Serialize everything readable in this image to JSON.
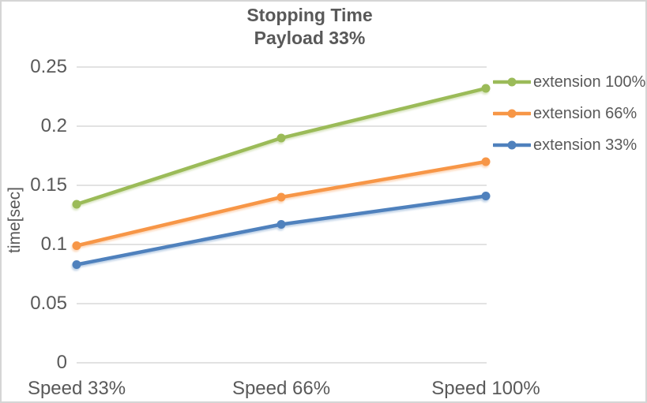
{
  "frame": {
    "border_color": "#d5d5d5",
    "background": "#ffffff"
  },
  "chart_data": {
    "type": "line",
    "title": "Stopping Time",
    "subtitle": "Payload 33%",
    "ylabel": "time[sec]",
    "xlabel": "",
    "categories": [
      "Speed 33%",
      "Speed 66%",
      "Speed 100%"
    ],
    "series": [
      {
        "name": "extension 100%",
        "color": "#9BBB59",
        "values": [
          0.134,
          0.19,
          0.232
        ]
      },
      {
        "name": "extension 66%",
        "color": "#F79646",
        "values": [
          0.099,
          0.14,
          0.17
        ]
      },
      {
        "name": "extension 33%",
        "color": "#4F81BD",
        "values": [
          0.083,
          0.117,
          0.141
        ]
      }
    ],
    "ylim": [
      0,
      0.25
    ],
    "ytick_step": 0.05,
    "ytick_labels": [
      "0",
      "0.05",
      "0.1",
      "0.15",
      "0.2",
      "0.25"
    ],
    "grid": true,
    "gridline_color": "#D9D9D9",
    "text_color": "#595959",
    "legend_position": "right",
    "marker": "circle"
  }
}
